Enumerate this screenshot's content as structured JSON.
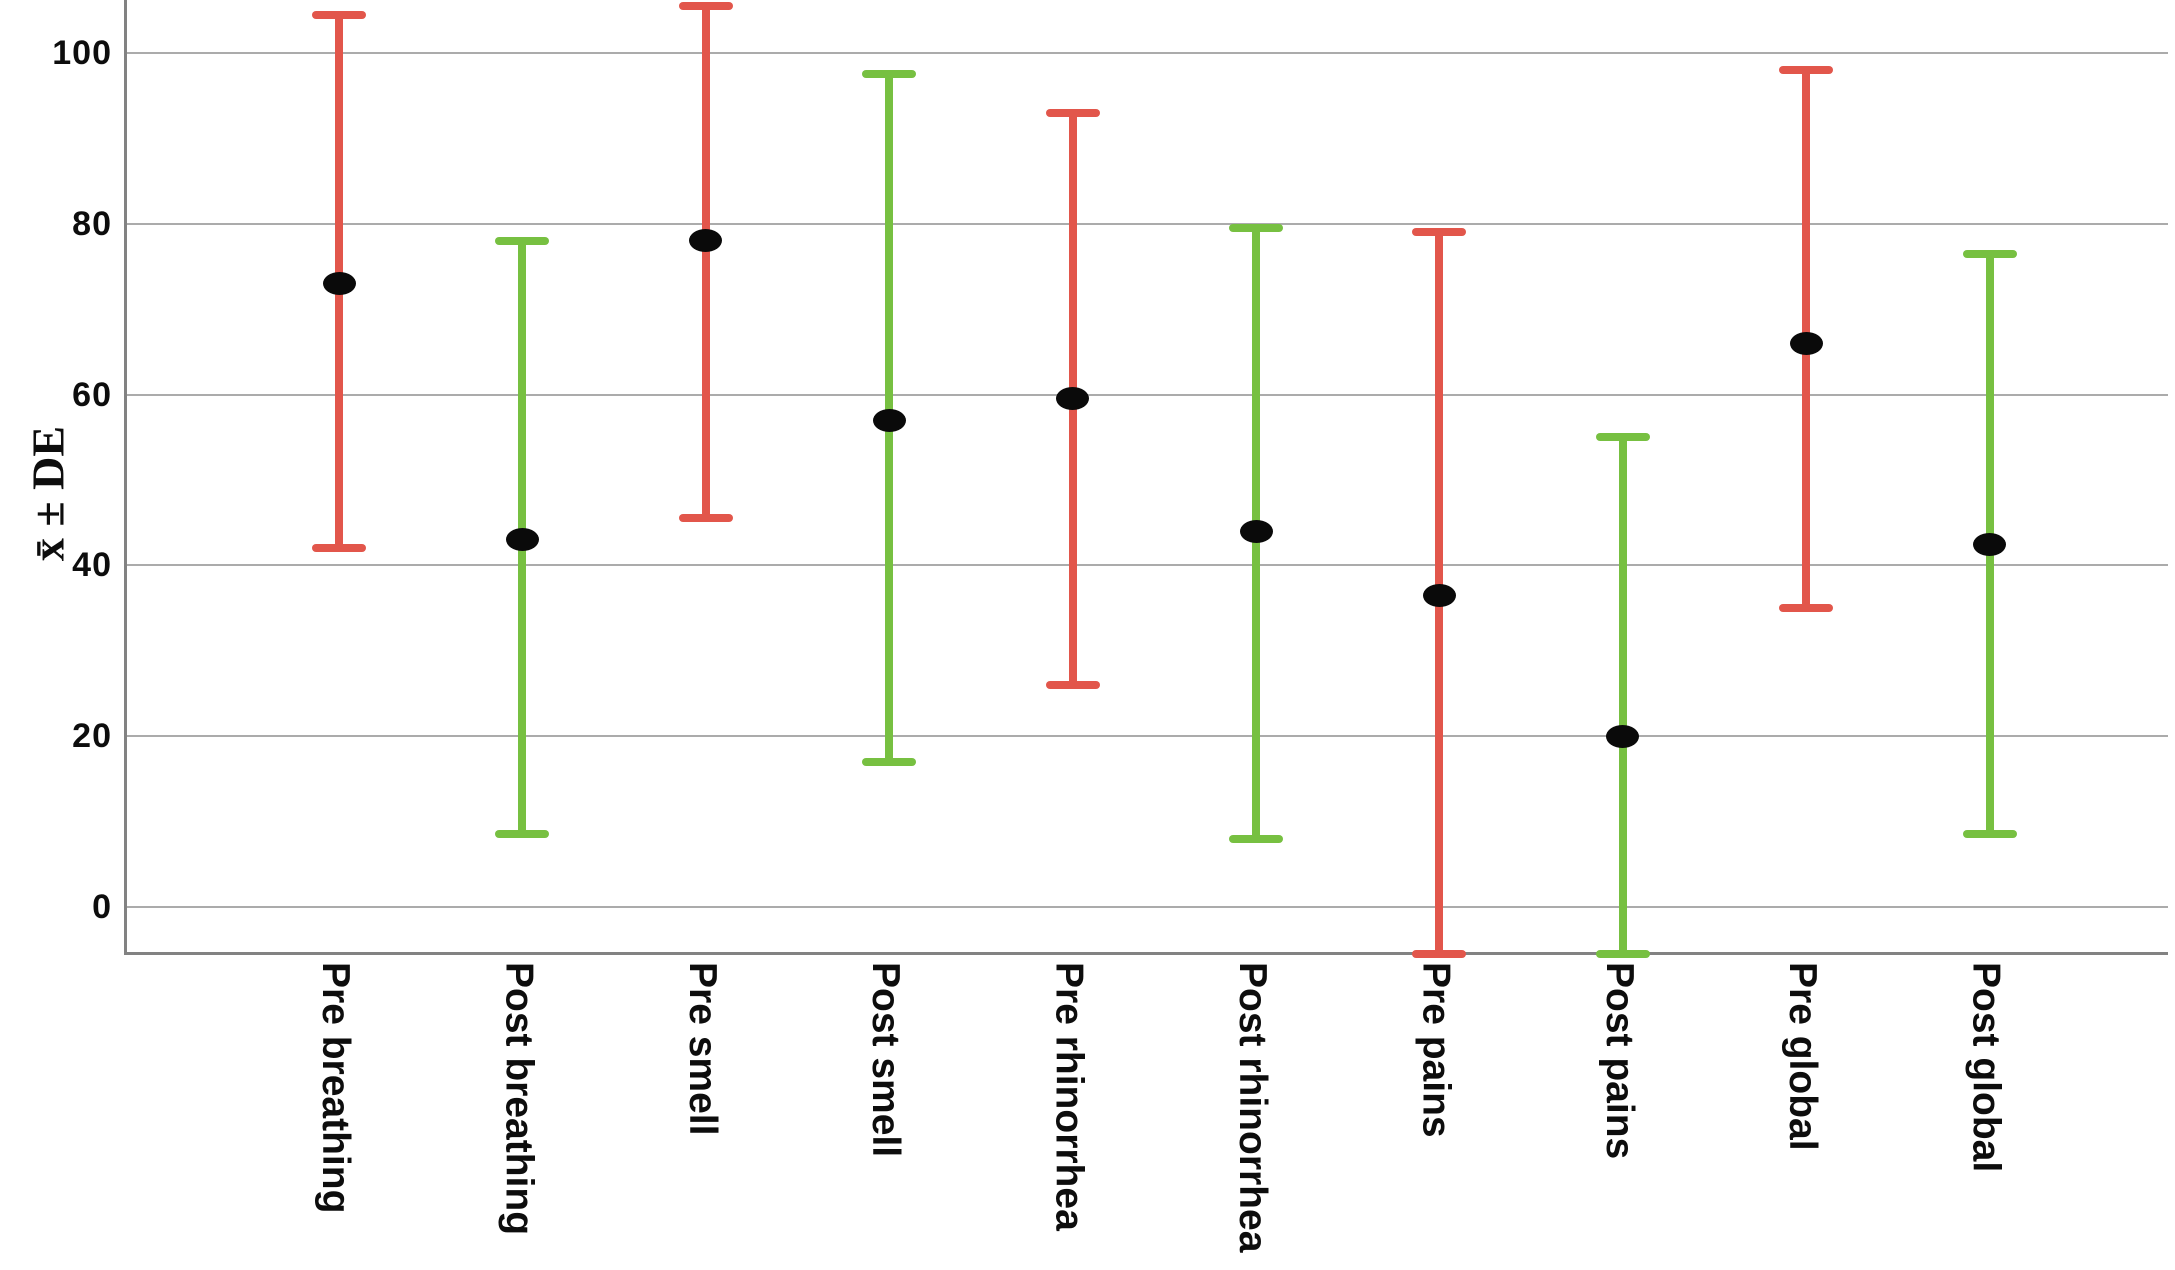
{
  "chart_data": {
    "type": "errorbar",
    "title": "",
    "xlabel": "",
    "ylabel": "x̄ ± DE",
    "yticks": [
      0,
      20,
      40,
      60,
      80,
      100
    ],
    "ylim": [
      -5.5,
      106.3
    ],
    "grid": "horizontal",
    "legend": "none",
    "categories": [
      "Pre breathing",
      "Post breathing",
      "Pre smell",
      "Post smell",
      "Pre rhinorrhea",
      "Post rhinorrhea",
      "Pre pains",
      "Post pains",
      "Pre global",
      "Post global"
    ],
    "series_note": "mean with standard-deviation error bars; Pre = red, Post = green",
    "points": [
      {
        "label": "Pre breathing",
        "group": "pre",
        "mean": 73,
        "upper": 104.5,
        "lower": 42
      },
      {
        "label": "Post breathing",
        "group": "post",
        "mean": 43,
        "upper": 78,
        "lower": 8.5
      },
      {
        "label": "Pre smell",
        "group": "pre",
        "mean": 78,
        "upper": 105.5,
        "lower": 45.5
      },
      {
        "label": "Post smell",
        "group": "post",
        "mean": 57,
        "upper": 97.5,
        "lower": 17
      },
      {
        "label": "Pre rhinorrhea",
        "group": "pre",
        "mean": 59.5,
        "upper": 93,
        "lower": 26
      },
      {
        "label": "Post rhinorrhea",
        "group": "post",
        "mean": 44,
        "upper": 79.5,
        "lower": 8
      },
      {
        "label": "Pre pains",
        "group": "pre",
        "mean": 36.5,
        "upper": 79,
        "lower": -5.5
      },
      {
        "label": "Post pains",
        "group": "post",
        "mean": 20,
        "upper": 55,
        "lower": -5.5
      },
      {
        "label": "Pre global",
        "group": "pre",
        "mean": 66,
        "upper": 98,
        "lower": 35
      },
      {
        "label": "Post global",
        "group": "post",
        "mean": 42.5,
        "upper": 76.5,
        "lower": 8.5
      }
    ],
    "colors": {
      "pre": "#e2564b",
      "post": "#77c041",
      "dot": "#0a0a0a",
      "gridline": "#ababab",
      "axis": "#828282"
    }
  }
}
